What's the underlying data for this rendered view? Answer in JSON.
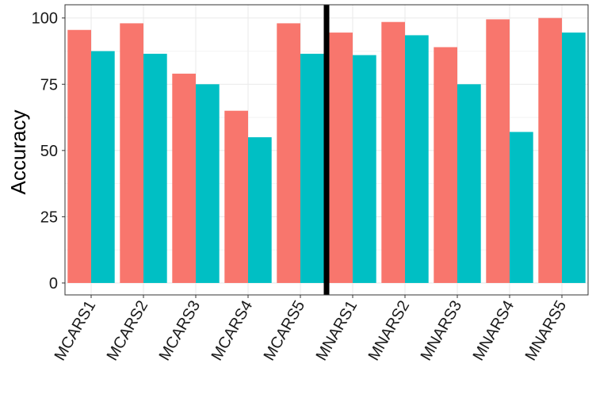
{
  "chart_data": {
    "type": "bar",
    "title": "",
    "xlabel": "",
    "ylabel": "Accuracy",
    "ylim": [
      -4.5,
      105
    ],
    "yticks": [
      0,
      25,
      50,
      75,
      100
    ],
    "grid": true,
    "legend": "none",
    "divider_after_category": 5,
    "categories": [
      "MCARS1",
      "MCARS2",
      "MCARS3",
      "MCARS4",
      "MCARS5",
      "MNARS1",
      "MNARS2",
      "MNARS3",
      "MNARS4",
      "MNARS5"
    ],
    "series": [
      {
        "color": "#F8766D",
        "values": [
          95.5,
          98,
          79,
          65,
          98,
          94.5,
          98.5,
          89,
          99.5,
          100
        ]
      },
      {
        "color": "#00BFC4",
        "values": [
          87.5,
          86.5,
          75,
          55,
          86.5,
          86,
          93.5,
          75,
          57,
          94.5
        ]
      }
    ]
  }
}
